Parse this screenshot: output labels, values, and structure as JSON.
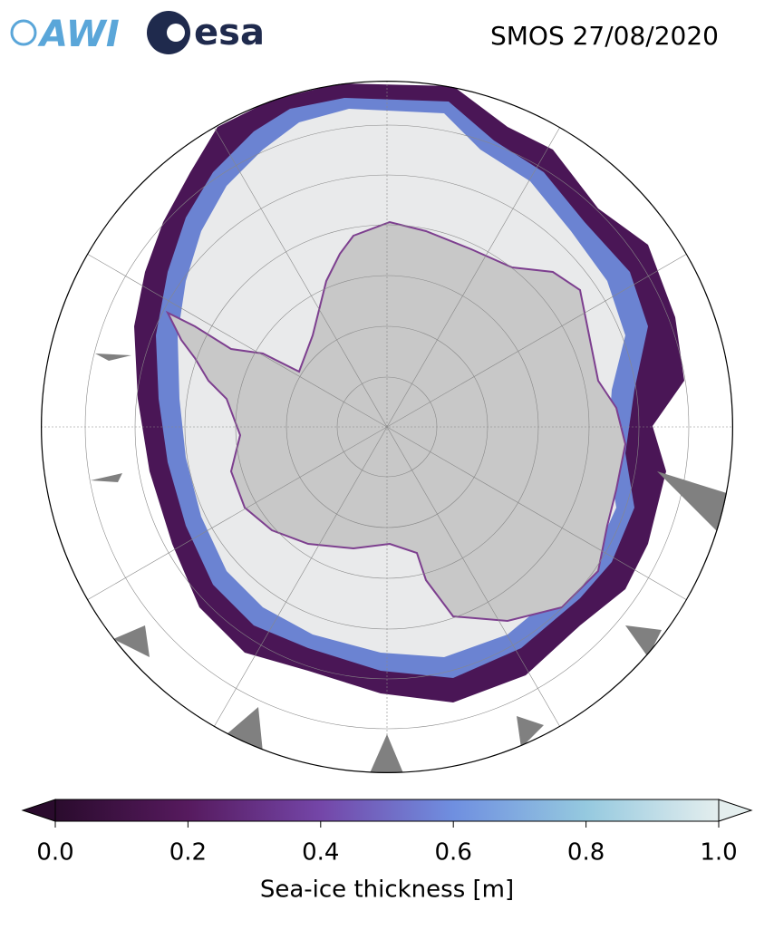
{
  "header": {
    "logos": [
      "AWI",
      "esa"
    ],
    "title": "SMOS 27/08/2020"
  },
  "colorbar": {
    "label": "Sea-ice thickness [m]",
    "lim": [
      0,
      1
    ],
    "ticks": [
      {
        "value": 0,
        "label": "0.0"
      },
      {
        "value": 0.2,
        "label": "0.2"
      },
      {
        "value": 0.4,
        "label": "0.4"
      },
      {
        "value": 0.6,
        "label": "0.6"
      },
      {
        "value": 0.8,
        "label": "0.8"
      },
      {
        "value": 1,
        "label": "1.0"
      }
    ],
    "colors": [
      "#2a0b2d",
      "#561a5e",
      "#7446a8",
      "#6f8fe0",
      "#95c9df",
      "#e4eeee"
    ]
  }
}
